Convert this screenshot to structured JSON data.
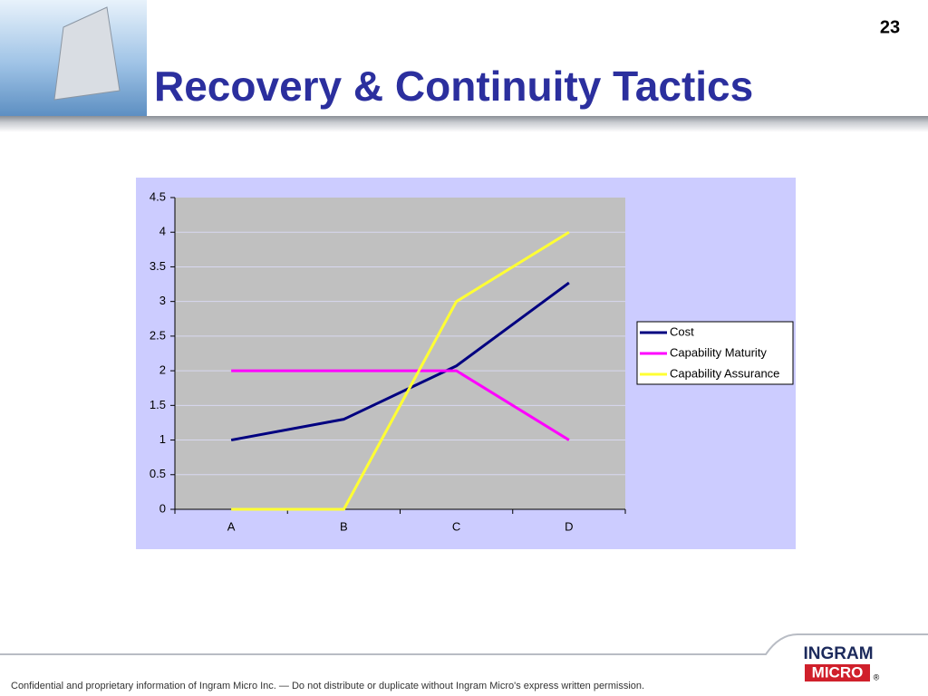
{
  "slide": {
    "number": "23",
    "title": "Recovery & Continuity Tactics",
    "footer": "Confidential and proprietary information of Ingram Micro Inc. — Do not distribute or duplicate without Ingram Micro's express written permission.",
    "logo_top": "INGRAM",
    "logo_bottom": "MICRO",
    "logo_mark": "®"
  },
  "chart_data": {
    "type": "line",
    "categories": [
      "A",
      "B",
      "C",
      "D"
    ],
    "series": [
      {
        "name": "Cost",
        "color": "#000080",
        "values": [
          1,
          1.3,
          2.07,
          3.27
        ]
      },
      {
        "name": "Capability Maturity",
        "color": "#ff00ff",
        "values": [
          2,
          2,
          2,
          1
        ]
      },
      {
        "name": "Capability Assurance",
        "color": "#ffff33",
        "values": [
          0,
          0,
          3,
          4
        ]
      }
    ],
    "ylim": [
      0,
      4.5
    ],
    "yticks": [
      0,
      0.5,
      1,
      1.5,
      2,
      2.5,
      3,
      3.5,
      4,
      4.5
    ],
    "grid": true,
    "legend": "right"
  }
}
